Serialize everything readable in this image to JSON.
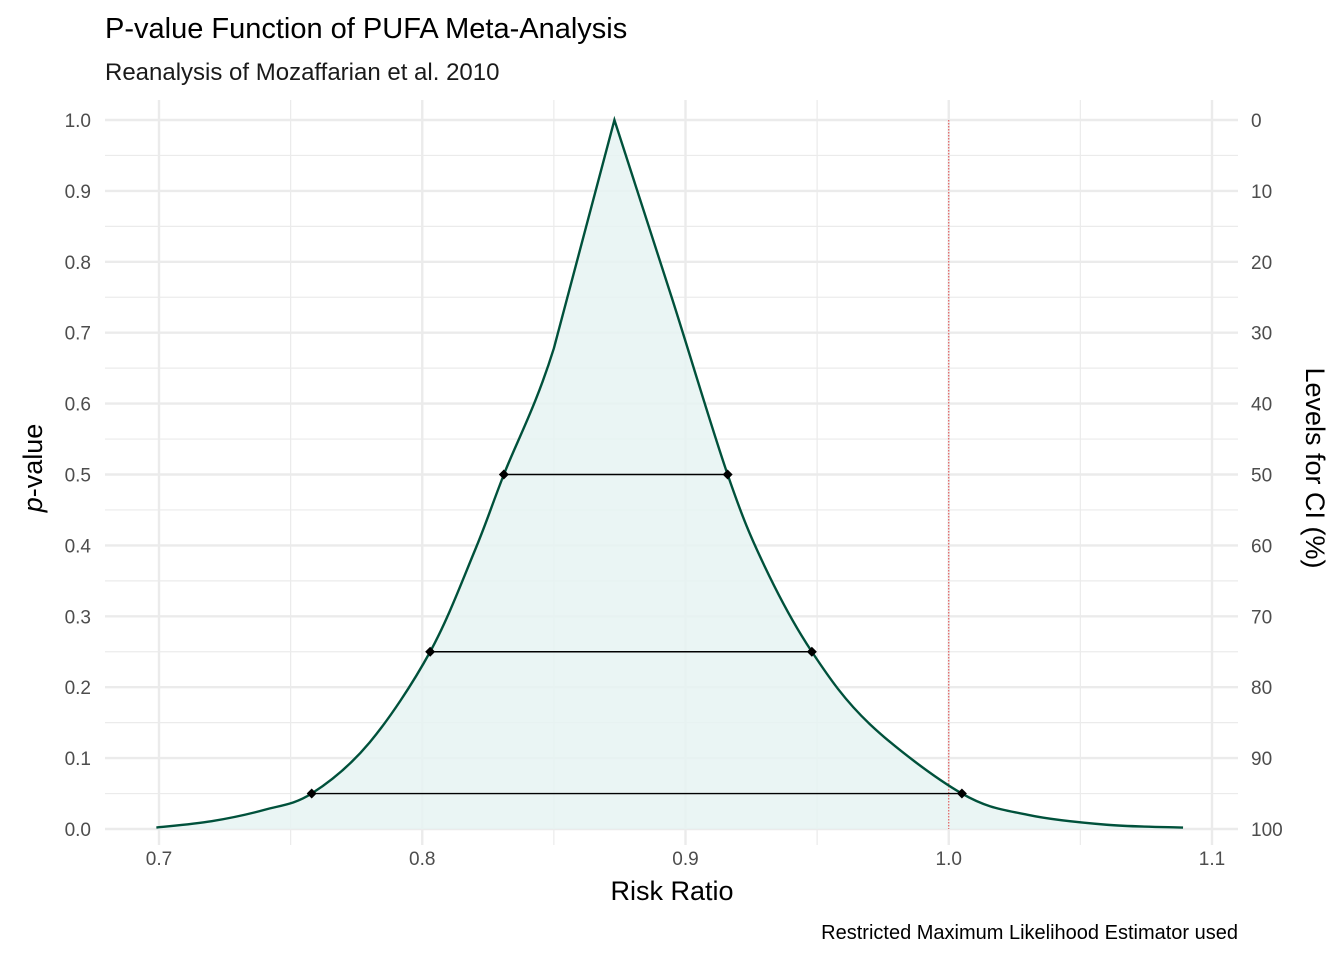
{
  "chart_data": {
    "type": "area",
    "title": "P-value Function of PUFA Meta-Analysis",
    "subtitle": "Reanalysis of Mozaffarian et al. 2010",
    "xlabel": "Risk Ratio",
    "ylabel_italic": "p",
    "ylabel_rest": "-value",
    "y2label": "Levels for CI (%)",
    "caption": "Restricted Maximum Likelihood Estimator used",
    "xlim": [
      0.68,
      1.105
    ],
    "ylim": [
      0,
      1
    ],
    "x_ticks": [
      0.7,
      0.8,
      0.9,
      1.0,
      1.1
    ],
    "x_tick_labels": [
      "0.7",
      "0.8",
      "0.9",
      "1.0",
      "1.1"
    ],
    "y_ticks": [
      0,
      0.1,
      0.2,
      0.3,
      0.4,
      0.5,
      0.6,
      0.7,
      0.8,
      0.9,
      1.0
    ],
    "y_tick_labels": [
      "0.0",
      "0.1",
      "0.2",
      "0.3",
      "0.4",
      "0.5",
      "0.6",
      "0.7",
      "0.8",
      "0.9",
      "1.0"
    ],
    "y2_tick_labels": [
      "100",
      "90",
      "80",
      "70",
      "60",
      "50",
      "40",
      "30",
      "20",
      "10",
      "0"
    ],
    "grid": true,
    "curve": {
      "x_range": [
        0.699,
        1.089
      ],
      "peak_x": 0.873,
      "x": [
        0.699,
        0.72,
        0.74,
        0.758,
        0.78,
        0.803,
        0.82,
        0.831,
        0.85,
        0.873,
        0.895,
        0.916,
        0.93,
        0.948,
        0.97,
        1.005,
        1.03,
        1.06,
        1.089
      ],
      "p": [
        0.002,
        0.011,
        0.027,
        0.05,
        0.122,
        0.25,
        0.393,
        0.5,
        0.678,
        1.0,
        0.747,
        0.5,
        0.371,
        0.25,
        0.148,
        0.05,
        0.02,
        0.006,
        0.002
      ],
      "color": "#00513b",
      "fill": "#e6f3f2"
    },
    "ci_segments": [
      {
        "p": 0.5,
        "lower": 0.831,
        "upper": 0.916
      },
      {
        "p": 0.25,
        "lower": 0.803,
        "upper": 0.948
      },
      {
        "p": 0.05,
        "lower": 0.758,
        "upper": 1.005
      }
    ],
    "reference_line": {
      "x": 1.0,
      "color": "#e41a1c"
    }
  }
}
